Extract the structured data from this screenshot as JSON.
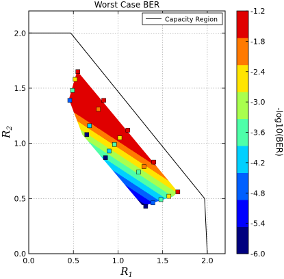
{
  "chart_data": {
    "type": "scatter",
    "title": "Worst Case BER",
    "xlabel": "R",
    "xlabel_sub": "1",
    "ylabel": "R",
    "ylabel_sub": "2",
    "xlim": [
      0.0,
      2.2
    ],
    "ylim": [
      0.0,
      2.2
    ],
    "xticks": [
      "0.0",
      "0.5",
      "1.0",
      "1.5",
      "2.0"
    ],
    "xtick_values": [
      0.0,
      0.5,
      1.0,
      1.5,
      2.0
    ],
    "yticks": [
      "0.0",
      "0.5",
      "1.0",
      "1.5",
      "2.0"
    ],
    "ytick_values": [
      0.0,
      0.5,
      1.0,
      1.5,
      2.0
    ],
    "grid": true,
    "legend_placement": "top-right",
    "capacity_region": {
      "name": "Capacity Region",
      "color": "#000000",
      "x": [
        0.0,
        0.47,
        1.97,
        2.0
      ],
      "y": [
        2.0,
        2.0,
        0.5,
        0.0
      ]
    },
    "colorbar": {
      "label": "-log10(BER)",
      "min": -6.0,
      "max": -1.2,
      "ticks": [
        "-1.2",
        "-1.8",
        "-2.4",
        "-3.0",
        "-3.6",
        "-4.2",
        "-4.8",
        "-5.4",
        "-6.0"
      ],
      "tick_values": [
        -1.2,
        -1.8,
        -2.4,
        -3.0,
        -3.6,
        -4.2,
        -4.8,
        -5.4,
        -6.0
      ],
      "level_colors": [
        "#00007f",
        "#0000ff",
        "#0060ff",
        "#00d0ff",
        "#4effa9",
        "#a9ff4e",
        "#ffe500",
        "#ff7a00",
        "#e00000"
      ]
    },
    "contour_region": {
      "x": [
        0.54,
        0.58,
        1.67,
        1.62,
        1.31,
        1.27,
        0.6,
        0.45
      ],
      "y": [
        1.65,
        1.62,
        0.56,
        0.52,
        0.44,
        0.44,
        1.08,
        1.4
      ]
    },
    "points": [
      {
        "x": 0.55,
        "y": 1.65,
        "v": -1.3
      },
      {
        "x": 0.52,
        "y": 1.58,
        "v": -2.6
      },
      {
        "x": 0.49,
        "y": 1.48,
        "v": -3.4
      },
      {
        "x": 0.46,
        "y": 1.39,
        "v": -4.5
      },
      {
        "x": 0.84,
        "y": 1.39,
        "v": -1.3
      },
      {
        "x": 0.78,
        "y": 1.31,
        "v": -2.2
      },
      {
        "x": 1.11,
        "y": 1.12,
        "v": -1.3
      },
      {
        "x": 1.02,
        "y": 1.05,
        "v": -2.6
      },
      {
        "x": 0.96,
        "y": 0.99,
        "v": -3.4
      },
      {
        "x": 0.9,
        "y": 0.93,
        "v": -4.2
      },
      {
        "x": 0.86,
        "y": 0.87,
        "v": -5.6
      },
      {
        "x": 0.68,
        "y": 1.16,
        "v": -4.3
      },
      {
        "x": 0.65,
        "y": 1.08,
        "v": -5.8
      },
      {
        "x": 1.4,
        "y": 0.83,
        "v": -1.3
      },
      {
        "x": 1.29,
        "y": 0.79,
        "v": -2.2
      },
      {
        "x": 1.23,
        "y": 0.74,
        "v": -3.4
      },
      {
        "x": 1.67,
        "y": 0.56,
        "v": -1.3
      },
      {
        "x": 1.57,
        "y": 0.52,
        "v": -2.6
      },
      {
        "x": 1.48,
        "y": 0.49,
        "v": -3.4
      },
      {
        "x": 1.39,
        "y": 0.46,
        "v": -4.5
      },
      {
        "x": 1.31,
        "y": 0.43,
        "v": -5.8
      }
    ]
  }
}
